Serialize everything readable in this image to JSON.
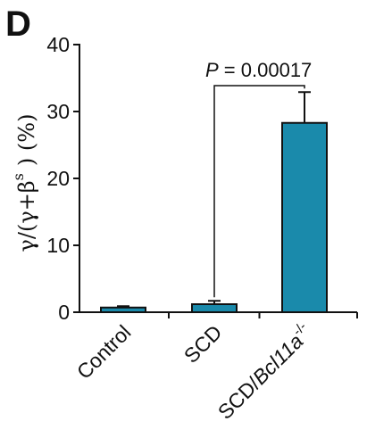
{
  "panel_label": "D",
  "chart_data": {
    "type": "bar",
    "categories": [
      "Control",
      "SCD",
      "SCD/Bcl11a"
    ],
    "category_superscripts": [
      "",
      "",
      "-/-"
    ],
    "values": [
      0.7,
      1.2,
      28.3
    ],
    "errors": [
      0.2,
      0.5,
      4.6
    ],
    "ylim": [
      0,
      40
    ],
    "yticks": [
      0,
      10,
      20,
      30,
      40
    ],
    "ylabel": {
      "base": "γ/(γ+β",
      "superscript": "s",
      "tail": ") (%)"
    },
    "xlabel": "",
    "title": "",
    "bar_color": "#1a8aab",
    "annotation": {
      "italic": "P",
      "text": " = 0.00017",
      "from_category": 1,
      "to_category": 2
    }
  }
}
